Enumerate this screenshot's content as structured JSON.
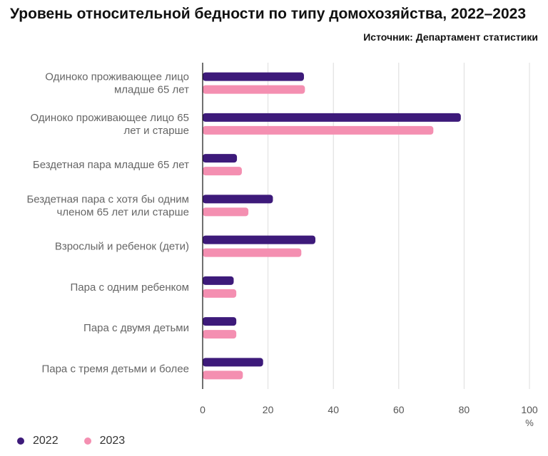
{
  "title": "Уровень относительной бедности по типу домохозяйства, 2022–2023",
  "source": "Источник: Департамент статистики",
  "chart_data": {
    "type": "bar",
    "orientation": "horizontal",
    "title": "Уровень относительной бедности по типу домохозяйства, 2022–2023",
    "xlabel": "%",
    "ylabel": "",
    "xlim": [
      0,
      100
    ],
    "x_ticks": [
      0,
      20,
      40,
      60,
      80,
      100
    ],
    "grid": true,
    "legend_position": "bottom-left",
    "categories": [
      [
        "Одиноко проживающее лицо",
        "младше 65 лет"
      ],
      [
        "Одиноко проживающее лицо 65",
        "лет и старше"
      ],
      [
        "Бездетная пара младше 65 лет"
      ],
      [
        "Бездетная пара с хотя бы одним",
        "членом 65 лет или старше"
      ],
      [
        "Взрослый и ребенок (дети)"
      ],
      [
        "Пара с одним ребенком"
      ],
      [
        "Пара с двумя детьми"
      ],
      [
        "Пара с тремя детьми и более"
      ]
    ],
    "series": [
      {
        "name": "2022",
        "color": "#3d1a7a",
        "values": [
          31,
          79,
          10.5,
          21.5,
          34.5,
          9.5,
          10.3,
          18.5
        ]
      },
      {
        "name": "2023",
        "color": "#f48fb1",
        "values": [
          31.3,
          70.6,
          12,
          14,
          30.2,
          10.3,
          10.3,
          12.3
        ]
      }
    ]
  }
}
